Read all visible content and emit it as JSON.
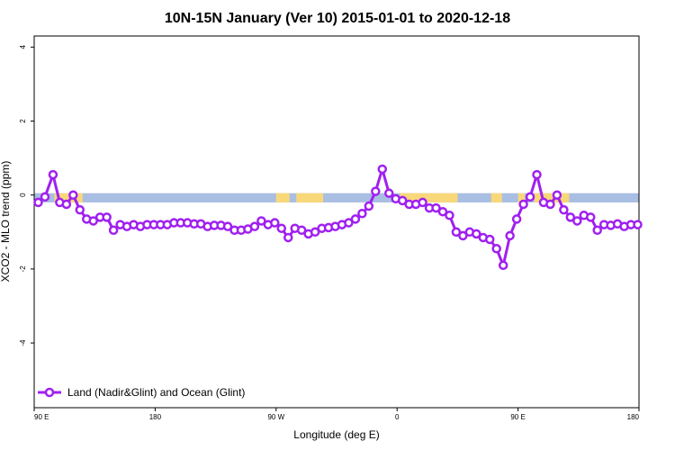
{
  "chart_data": {
    "type": "line",
    "title": "10N-15N January (Ver 10)   2015-01-01 to 2020-12-18",
    "xlabel": "Longitude (deg E)",
    "ylabel": "XCO2 - MLO trend (ppm)",
    "x_ticks": [
      {
        "pos": 0,
        "label": "90 E"
      },
      {
        "pos": 90,
        "label": "180"
      },
      {
        "pos": 180,
        "label": "90 W"
      },
      {
        "pos": 270,
        "label": "0"
      },
      {
        "pos": 360,
        "label": "90 E"
      },
      {
        "pos": 450,
        "label": "180"
      }
    ],
    "xlim": [
      0,
      450
    ],
    "ylim": [
      -5.75,
      4.3
    ],
    "y_ticks": [
      4,
      2,
      0,
      -2,
      -4
    ],
    "grid": false,
    "legend_position": "bottom-left",
    "colors": {
      "series": "#A020F0",
      "ocean": "#A9BEE3",
      "land": "#F9D87A"
    },
    "land_strip": {
      "y_range": [
        -0.2,
        0.05
      ],
      "land_segments": [
        [
          15,
          36
        ],
        [
          180,
          190
        ],
        [
          195,
          215
        ],
        [
          272,
          315
        ],
        [
          340,
          348
        ],
        [
          360,
          365
        ],
        [
          372,
          398
        ]
      ]
    },
    "series": [
      {
        "name": "Land (Nadir&Glint) and Ocean (Glint)",
        "x": [
          3,
          8,
          14,
          19,
          24,
          29,
          34,
          39,
          44,
          49,
          54,
          59,
          64,
          69,
          74,
          79,
          84,
          89,
          94,
          99,
          104,
          109,
          114,
          119,
          124,
          129,
          134,
          139,
          144,
          149,
          154,
          159,
          164,
          169,
          174,
          179,
          184,
          189,
          194,
          199,
          204,
          209,
          214,
          219,
          224,
          229,
          234,
          239,
          244,
          249,
          254,
          259,
          264,
          269,
          274,
          279,
          284,
          289,
          294,
          299,
          304,
          309,
          314,
          319,
          324,
          329,
          334,
          339,
          344,
          349,
          354,
          359,
          364,
          369,
          374,
          379,
          384,
          389,
          394,
          399,
          404,
          409,
          414,
          419,
          424,
          429,
          434,
          439,
          444,
          449
        ],
        "values": [
          -0.2,
          -0.05,
          0.55,
          -0.2,
          -0.25,
          0.0,
          -0.4,
          -0.65,
          -0.7,
          -0.6,
          -0.6,
          -0.95,
          -0.8,
          -0.85,
          -0.8,
          -0.85,
          -0.8,
          -0.8,
          -0.8,
          -0.8,
          -0.75,
          -0.75,
          -0.75,
          -0.78,
          -0.78,
          -0.85,
          -0.82,
          -0.82,
          -0.85,
          -0.95,
          -0.95,
          -0.92,
          -0.85,
          -0.7,
          -0.8,
          -0.75,
          -0.9,
          -1.15,
          -0.9,
          -0.95,
          -1.05,
          -1.0,
          -0.9,
          -0.88,
          -0.85,
          -0.8,
          -0.75,
          -0.65,
          -0.5,
          -0.3,
          0.1,
          0.7,
          0.05,
          -0.1,
          -0.15,
          -0.25,
          -0.25,
          -0.2,
          -0.35,
          -0.35,
          -0.45,
          -0.55,
          -1.0,
          -1.1,
          -1.0,
          -1.05,
          -1.15,
          -1.2,
          -1.45,
          -1.9,
          -1.1,
          -0.65,
          -0.25,
          -0.05,
          0.55,
          -0.2,
          -0.25,
          0.0,
          -0.4,
          -0.6,
          -0.7,
          -0.55,
          -0.6,
          -0.95,
          -0.8,
          -0.82,
          -0.78,
          -0.85,
          -0.8,
          -0.8
        ]
      }
    ]
  }
}
